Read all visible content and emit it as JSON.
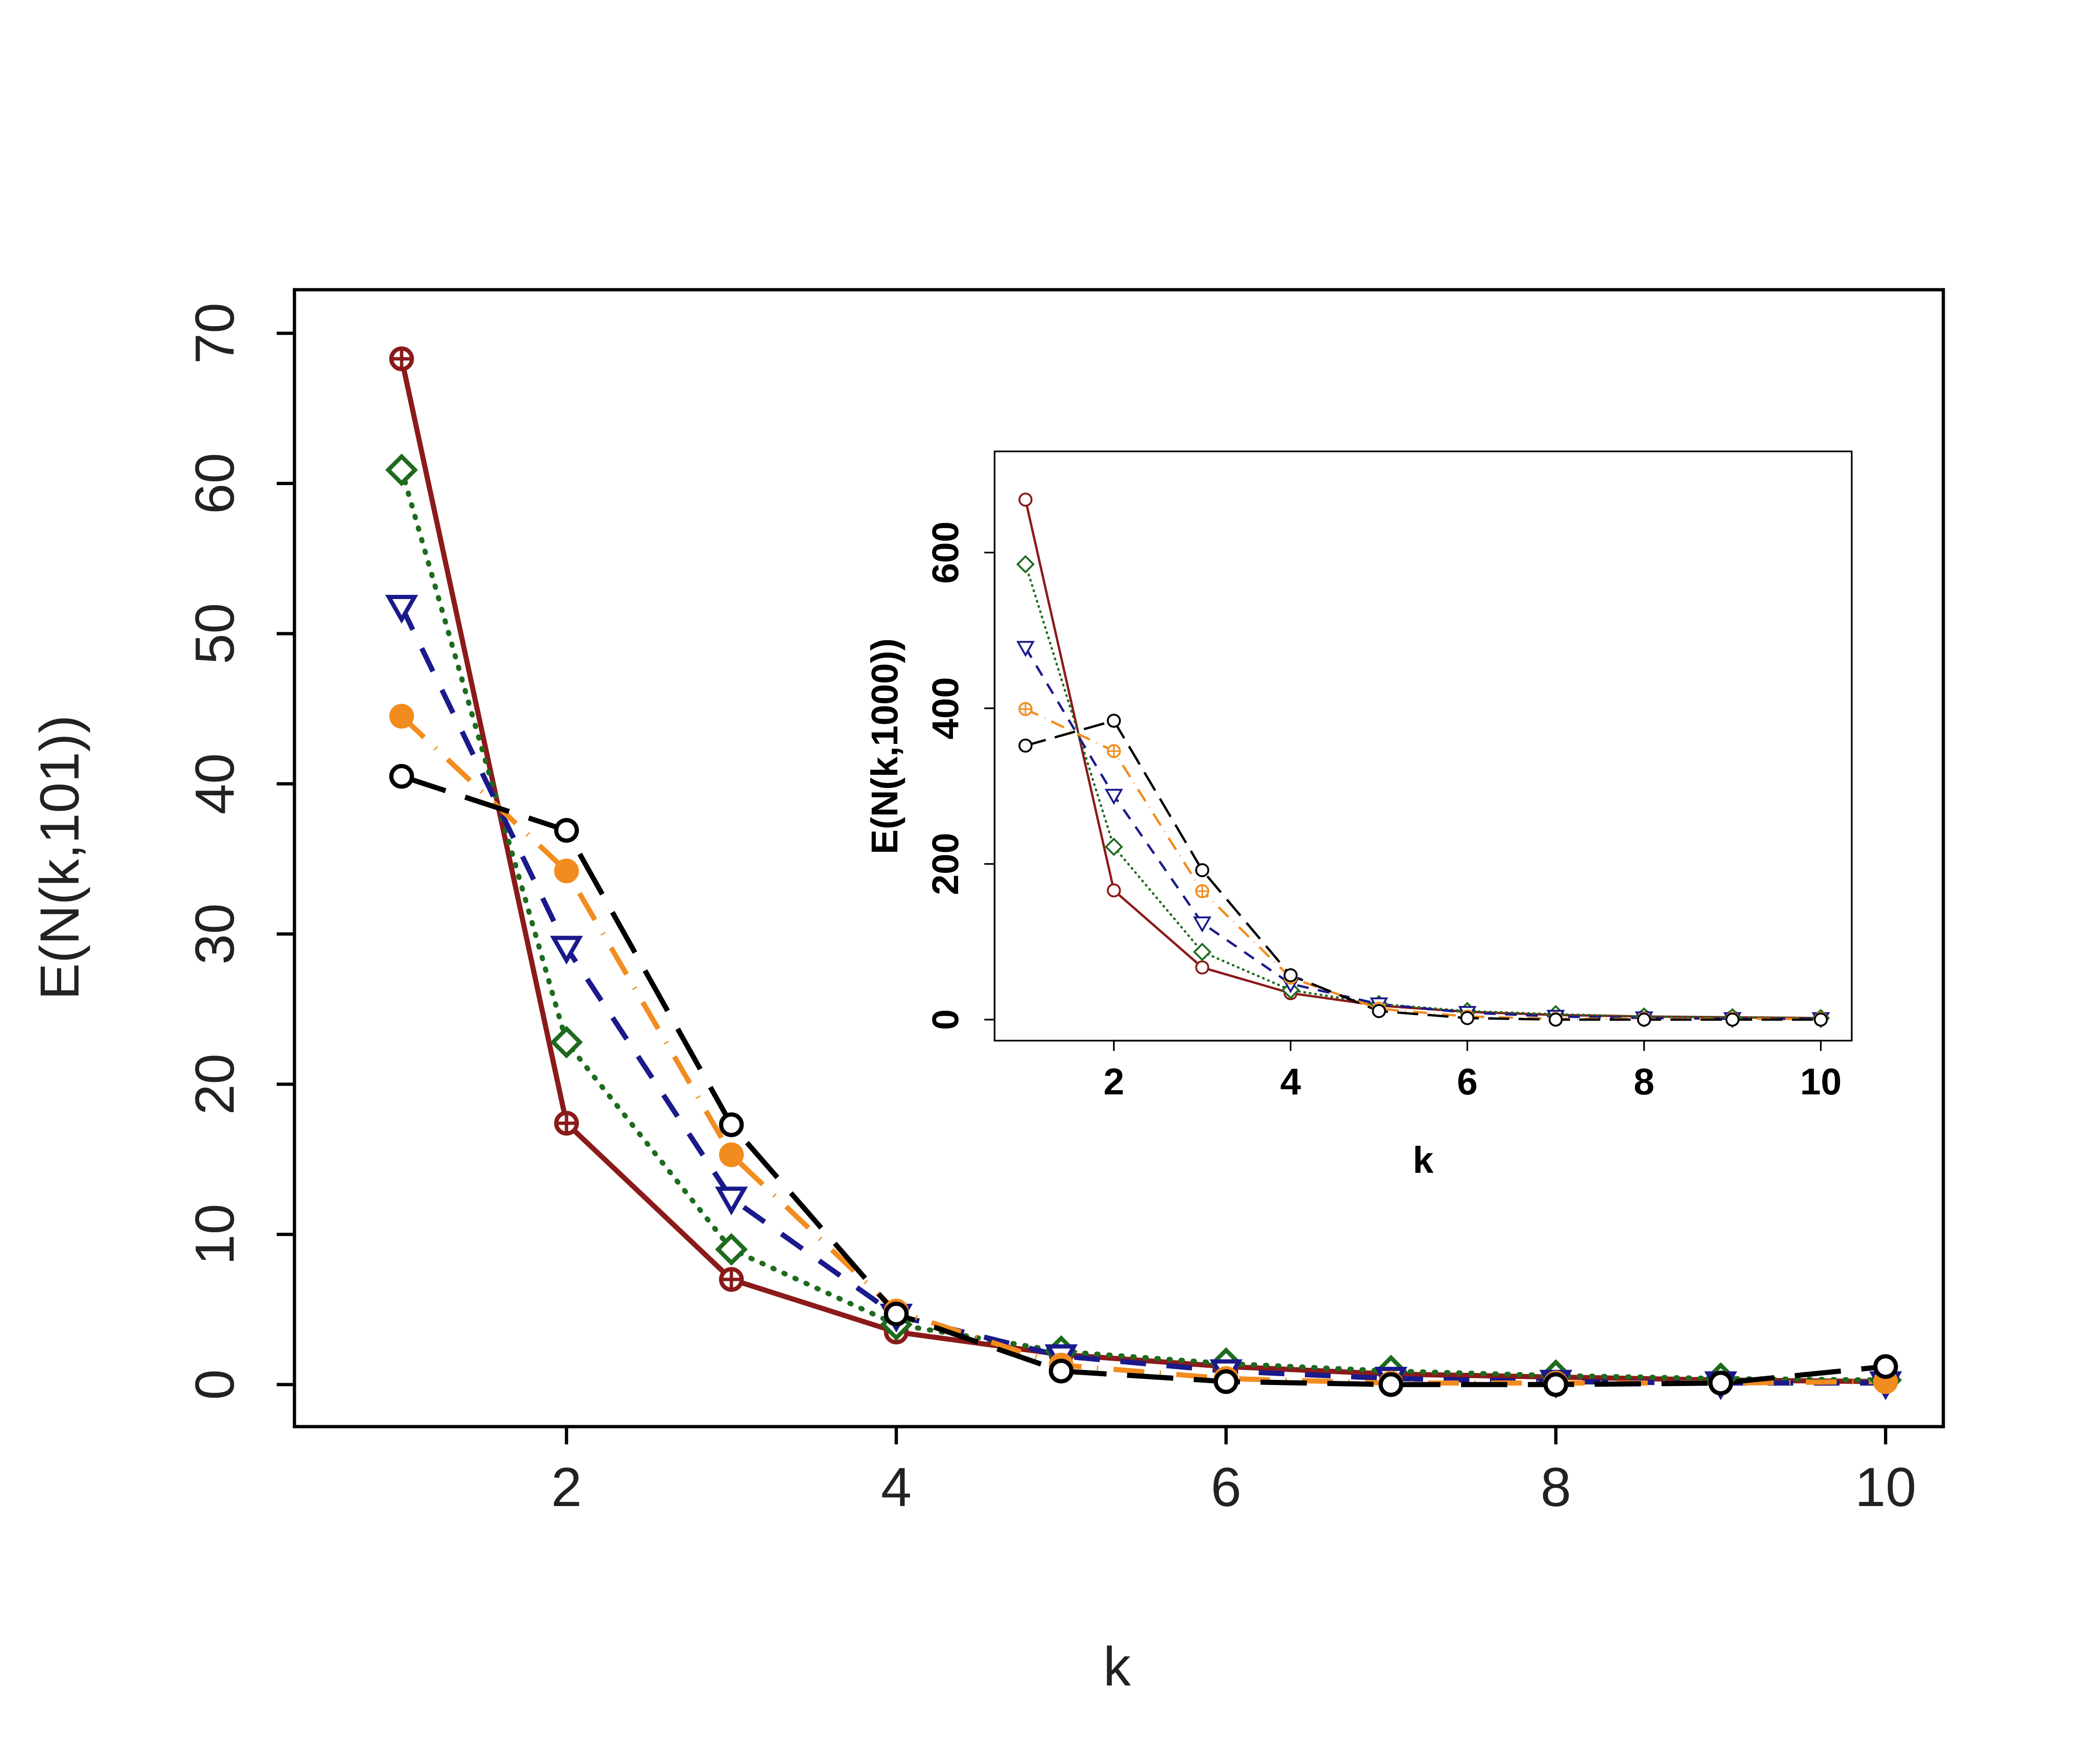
{
  "chart_data": [
    {
      "type": "line",
      "xlabel": "k",
      "ylabel": "E(N(k,101))",
      "xticks": [
        "2",
        "4",
        "6",
        "8",
        "10"
      ],
      "yticks": [
        "0",
        "10",
        "20",
        "30",
        "40",
        "50",
        "60",
        "70"
      ],
      "xlim": [
        0.35,
        10.35
      ],
      "ylim": [
        -2.8,
        72.9
      ],
      "grid": false,
      "x": [
        1,
        2,
        3,
        4,
        5,
        6,
        7,
        8,
        9,
        10
      ],
      "series": [
        {
          "color": "#8B1A1A",
          "dash": "solid",
          "marker": "circle-plus",
          "values": [
            68.3,
            17.4,
            7.0,
            3.5,
            2.0,
            1.2,
            0.7,
            0.5,
            0.3,
            0.2
          ]
        },
        {
          "color": "#1E6B1E",
          "dash": "dotted",
          "marker": "diamond",
          "values": [
            60.9,
            22.8,
            9.0,
            4.0,
            2.2,
            1.4,
            0.9,
            0.6,
            0.4,
            0.3
          ]
        },
        {
          "color": "#1A1A8C",
          "dash": "dashed",
          "marker": "triangle-down",
          "values": [
            51.8,
            29.1,
            12.4,
            4.6,
            1.9,
            0.9,
            0.4,
            0.2,
            0.1,
            0.1
          ]
        },
        {
          "color": "#F28C1E",
          "dash": "dashdot",
          "marker": "filled-circle",
          "values": [
            44.5,
            34.2,
            15.3,
            4.9,
            1.3,
            0.4,
            0.1,
            0.1,
            0.1,
            0.2
          ]
        },
        {
          "color": "#000000",
          "dash": "longdash",
          "marker": "circle",
          "values": [
            40.5,
            36.9,
            17.3,
            4.7,
            0.9,
            0.2,
            0.0,
            0.0,
            0.1,
            1.2
          ]
        }
      ]
    },
    {
      "type": "line",
      "xlabel": "k",
      "ylabel": "E(N(k,1000))",
      "xticks": [
        "2",
        "4",
        "6",
        "8",
        "10"
      ],
      "yticks": [
        "0",
        "200",
        "400",
        "600"
      ],
      "xlim": [
        0.65,
        10.35
      ],
      "ylim": [
        -27,
        730
      ],
      "grid": false,
      "x": [
        1,
        2,
        3,
        4,
        5,
        6,
        7,
        8,
        9,
        10
      ],
      "series": [
        {
          "color": "#8B1A1A",
          "dash": "solid",
          "marker": "circle",
          "values": [
            668,
            166,
            67,
            34,
            18,
            10,
            6,
            4,
            3,
            2
          ]
        },
        {
          "color": "#1E6B1E",
          "dash": "dotted",
          "marker": "diamond",
          "values": [
            585,
            222,
            87,
            38,
            20,
            11,
            7,
            4,
            3,
            2
          ]
        },
        {
          "color": "#1A1A8C",
          "dash": "dashed",
          "marker": "triangle-down",
          "values": [
            478,
            288,
            124,
            46,
            20,
            9,
            4,
            2,
            1,
            1
          ]
        },
        {
          "color": "#F28C1E",
          "dash": "dashdot",
          "marker": "circle-plus",
          "values": [
            399,
            345,
            165,
            54,
            14,
            4,
            1,
            1,
            1,
            1
          ]
        },
        {
          "color": "#000000",
          "dash": "longdash",
          "marker": "circle",
          "values": [
            352,
            384,
            192,
            57,
            11,
            2,
            0,
            0,
            0,
            0
          ]
        }
      ]
    }
  ]
}
